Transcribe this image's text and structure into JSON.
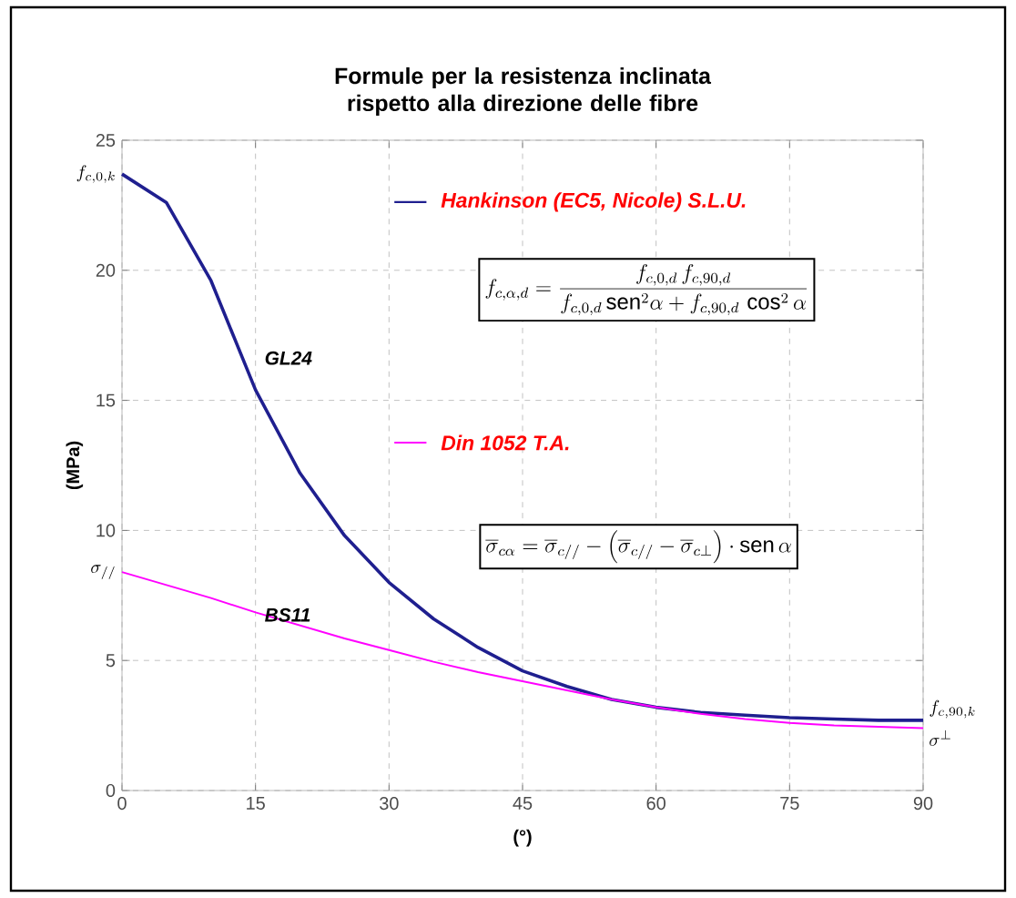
{
  "chart_data": {
    "type": "line",
    "title": "Formule per la resistenza inclinata rispetto alla direzione delle fibre",
    "xlabel": "(°)",
    "ylabel": "(MPa)",
    "x": [
      0,
      5,
      10,
      15,
      20,
      25,
      30,
      35,
      40,
      45,
      50,
      55,
      60,
      65,
      70,
      75,
      80,
      85,
      90
    ],
    "series": [
      {
        "name": "Hankinson (EC5, Nicole) S.L.U.",
        "color": "#1f1f8f",
        "values": [
          23.7,
          22.6,
          19.6,
          15.4,
          12.2,
          9.8,
          8.0,
          6.6,
          5.5,
          4.6,
          4.0,
          3.5,
          3.2,
          3.0,
          2.9,
          2.8,
          2.75,
          2.7,
          2.7
        ]
      },
      {
        "name": "Din 1052  T.A.",
        "color": "#ff00ff",
        "values": [
          8.4,
          7.9,
          7.4,
          6.85,
          6.35,
          5.85,
          5.4,
          4.95,
          4.55,
          4.2,
          3.85,
          3.5,
          3.2,
          2.95,
          2.75,
          2.6,
          2.5,
          2.45,
          2.4
        ]
      }
    ],
    "xlim": [
      0,
      90
    ],
    "ylim": [
      0,
      25
    ],
    "xticks": [
      0,
      15,
      30,
      45,
      60,
      75,
      90
    ],
    "yticks": [
      0,
      5,
      10,
      15,
      20,
      25
    ],
    "grid": true,
    "legend": "top",
    "marker": "none",
    "line_style": "solid",
    "annotations": [
      "f_{c,\\alpha,d} = \\frac{f_{c,0,d}\\,f_{c,90,d}}{f_{c,0,d}\\,\\mathrm{sen}^2\\alpha + f_{c,90,d}\\,\\cos^2\\alpha}",
      "\\overline{\\sigma}_{c\\alpha} = \\overline{\\sigma}_{c//} - \\left(\\overline{\\sigma}_{c//} - \\overline{\\sigma}_{c\\perp}\\right)\\cdot \\mathrm{sen}\\,\\alpha",
      "GL24",
      "BS11",
      "f_{c,0,k}",
      "\\sigma_{//}",
      "f_{c,90,k}",
      "\\sigma^{\\perp}"
    ]
  }
}
